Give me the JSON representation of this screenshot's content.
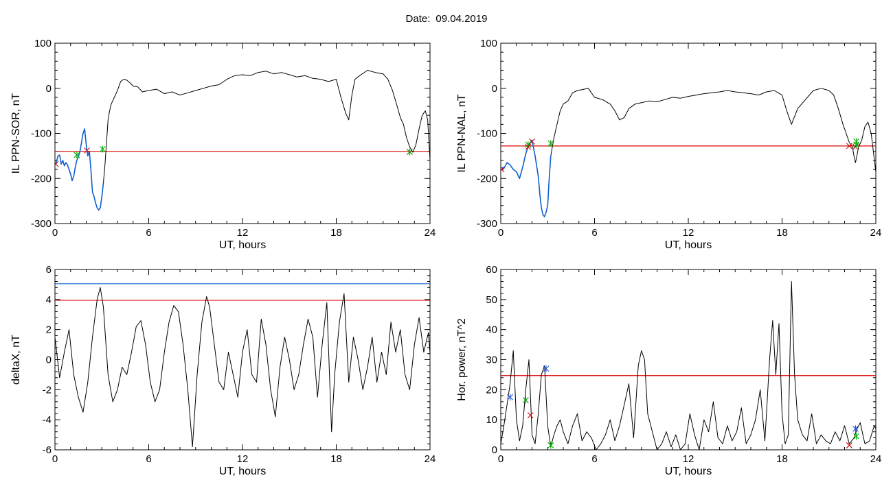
{
  "header": {
    "date_label": "Date:",
    "date_value": "09.04.2019"
  },
  "colors": {
    "trace": "#000000",
    "threshold_red": "#dd0000",
    "threshold_blue": "#1060d0",
    "segment_blue": "#1060d0",
    "marker_green": "#00aa00",
    "marker_red": "#cc0000",
    "marker_blue": "#2050e0"
  },
  "chart_data": [
    {
      "id": "sor",
      "type": "line",
      "xlabel": "UT, hours",
      "ylabel": "IL PPN-SOR, nT",
      "xlim": [
        0,
        24
      ],
      "ylim": [
        -300,
        100
      ],
      "xticks": [
        0,
        6,
        12,
        18,
        24
      ],
      "yticks": [
        -300,
        -200,
        -100,
        0,
        100
      ],
      "series": [
        {
          "color": "black",
          "x": [
            0,
            0.1,
            0.2,
            0.3,
            0.4,
            0.5,
            0.6,
            0.7,
            0.8,
            0.9,
            1.0,
            1.1,
            1.2,
            1.3,
            1.4,
            1.5,
            1.6,
            1.7,
            1.8,
            1.9,
            2.0,
            2.1,
            2.2,
            2.3,
            2.4,
            2.5,
            2.6,
            2.7,
            2.8,
            2.9,
            3.0,
            3.1,
            3.2,
            3.3,
            3.4,
            3.5,
            3.6,
            3.8,
            4.0,
            4.2,
            4.4,
            4.6,
            4.8,
            5.0,
            5.3,
            5.6,
            6.0,
            6.5,
            7.0,
            7.5,
            8.0,
            8.5,
            9.0,
            9.5,
            10.0,
            10.5,
            11.0,
            11.5,
            12.0,
            12.5,
            13.0,
            13.5,
            14.0,
            14.5,
            15.0,
            15.5,
            16.0,
            16.5,
            17.0,
            17.5,
            18.0,
            18.3,
            18.6,
            18.8,
            19.0,
            19.2,
            19.5,
            20.0,
            20.5,
            21.0,
            21.3,
            21.6,
            21.9,
            22.1,
            22.3,
            22.5,
            22.7,
            22.9,
            23.1,
            23.3,
            23.5,
            23.7,
            23.85,
            24.0
          ],
          "y": [
            -170,
            -162,
            -150,
            -148,
            -168,
            -160,
            -172,
            -165,
            -170,
            -180,
            -190,
            -205,
            -195,
            -175,
            -160,
            -152,
            -140,
            -120,
            -100,
            -90,
            -125,
            -150,
            -140,
            -180,
            -230,
            -240,
            -255,
            -265,
            -270,
            -265,
            -240,
            -210,
            -170,
            -120,
            -70,
            -50,
            -35,
            -20,
            -5,
            15,
            20,
            18,
            12,
            5,
            3,
            -8,
            -5,
            -2,
            -12,
            -8,
            -15,
            -10,
            -5,
            0,
            5,
            8,
            20,
            28,
            30,
            28,
            35,
            38,
            32,
            35,
            30,
            25,
            28,
            22,
            20,
            15,
            20,
            -20,
            -55,
            -70,
            -15,
            20,
            28,
            40,
            35,
            32,
            20,
            -5,
            -40,
            -65,
            -80,
            -110,
            -130,
            -142,
            -125,
            -90,
            -60,
            -50,
            -70,
            -160
          ]
        }
      ],
      "threshold_red": -140,
      "highlighted_segments": [
        [
          0,
          3.1
        ]
      ],
      "markers": [
        {
          "x": 1.4,
          "y": -148,
          "color": "green"
        },
        {
          "x": 2.05,
          "y": -138,
          "color": "red"
        },
        {
          "x": 3.05,
          "y": -135,
          "color": "green"
        },
        {
          "x": 22.7,
          "y": -141,
          "color": "red"
        },
        {
          "x": 22.7,
          "y": -141,
          "color": "green"
        },
        {
          "x": 0.05,
          "y": -168,
          "color": "red"
        }
      ]
    },
    {
      "id": "nal",
      "type": "line",
      "xlabel": "UT, hours",
      "ylabel": "IL PPN-NAL, nT",
      "xlim": [
        0,
        24
      ],
      "ylim": [
        -300,
        100
      ],
      "xticks": [
        0,
        6,
        12,
        18,
        24
      ],
      "yticks": [
        -300,
        -200,
        -100,
        0,
        100
      ],
      "series": [
        {
          "color": "black",
          "x": [
            0,
            0.2,
            0.4,
            0.6,
            0.8,
            1.0,
            1.2,
            1.4,
            1.6,
            1.8,
            2.0,
            2.2,
            2.4,
            2.5,
            2.6,
            2.7,
            2.8,
            2.9,
            3.0,
            3.1,
            3.2,
            3.4,
            3.6,
            3.8,
            4.0,
            4.3,
            4.6,
            4.9,
            5.2,
            5.6,
            6.0,
            6.5,
            7.0,
            7.3,
            7.6,
            7.9,
            8.2,
            8.6,
            9.0,
            9.5,
            10.0,
            10.5,
            11.0,
            11.5,
            12.0,
            12.5,
            13.0,
            13.5,
            14.0,
            14.5,
            15.0,
            15.5,
            16.0,
            16.5,
            17.0,
            17.5,
            18.0,
            18.3,
            18.6,
            19.0,
            19.5,
            20.0,
            20.5,
            21.0,
            21.3,
            21.6,
            21.9,
            22.1,
            22.3,
            22.5,
            22.6,
            22.7,
            22.9,
            23.1,
            23.3,
            23.5,
            23.7,
            24.0
          ],
          "y": [
            -175,
            -178,
            -165,
            -170,
            -180,
            -185,
            -200,
            -175,
            -145,
            -125,
            -115,
            -150,
            -195,
            -235,
            -265,
            -280,
            -285,
            -275,
            -260,
            -200,
            -150,
            -110,
            -80,
            -50,
            -35,
            -28,
            -10,
            -5,
            -3,
            0,
            -20,
            -25,
            -35,
            -50,
            -70,
            -65,
            -45,
            -35,
            -32,
            -28,
            -30,
            -25,
            -20,
            -22,
            -18,
            -15,
            -12,
            -10,
            -8,
            -5,
            -8,
            -10,
            -12,
            -15,
            -8,
            -5,
            -15,
            -50,
            -80,
            -45,
            -25,
            -5,
            0,
            -5,
            -15,
            -45,
            -80,
            -100,
            -120,
            -130,
            -150,
            -165,
            -130,
            -115,
            -85,
            -75,
            -100,
            -185
          ]
        }
      ],
      "threshold_red": -128,
      "highlighted_segments": [
        [
          0,
          3.2
        ]
      ],
      "markers": [
        {
          "x": 1.75,
          "y": -125,
          "color": "green"
        },
        {
          "x": 1.75,
          "y": -130,
          "color": "red"
        },
        {
          "x": 2.0,
          "y": -118,
          "color": "red"
        },
        {
          "x": 3.2,
          "y": -122,
          "color": "green"
        },
        {
          "x": 22.3,
          "y": -128,
          "color": "red"
        },
        {
          "x": 22.7,
          "y": -130,
          "color": "red"
        },
        {
          "x": 22.75,
          "y": -118,
          "color": "green"
        },
        {
          "x": 22.75,
          "y": -125,
          "color": "green"
        },
        {
          "x": 0.05,
          "y": -180,
          "color": "red"
        }
      ]
    },
    {
      "id": "deltax",
      "type": "line",
      "xlabel": "UT, hours",
      "ylabel": "deltaX, nT",
      "xlim": [
        0,
        24
      ],
      "ylim": [
        -6,
        6
      ],
      "xticks": [
        0,
        6,
        12,
        18,
        24
      ],
      "yticks": [
        -6,
        -4,
        -2,
        0,
        2,
        4,
        6
      ],
      "series": [
        {
          "color": "black",
          "x": [
            0,
            0.3,
            0.6,
            0.9,
            1.2,
            1.5,
            1.8,
            2.1,
            2.4,
            2.7,
            2.9,
            3.1,
            3.4,
            3.7,
            4.0,
            4.3,
            4.6,
            4.9,
            5.2,
            5.5,
            5.8,
            6.1,
            6.4,
            6.7,
            7.0,
            7.3,
            7.6,
            7.9,
            8.2,
            8.5,
            8.8,
            9.1,
            9.4,
            9.7,
            9.9,
            10.2,
            10.5,
            10.8,
            11.1,
            11.4,
            11.7,
            12.0,
            12.3,
            12.6,
            12.9,
            13.2,
            13.5,
            13.8,
            14.1,
            14.4,
            14.7,
            15.0,
            15.3,
            15.6,
            15.9,
            16.2,
            16.5,
            16.8,
            17.1,
            17.4,
            17.7,
            17.9,
            18.2,
            18.5,
            18.8,
            19.1,
            19.4,
            19.7,
            20.0,
            20.3,
            20.6,
            20.9,
            21.2,
            21.5,
            21.8,
            22.1,
            22.4,
            22.7,
            23.0,
            23.3,
            23.6,
            23.9,
            24.0
          ],
          "y": [
            1.5,
            -1.2,
            0.5,
            2.0,
            -1.0,
            -2.5,
            -3.5,
            -1.5,
            1.5,
            4.0,
            4.8,
            3.5,
            -1.0,
            -2.8,
            -2.0,
            -0.5,
            -1.0,
            0.5,
            2.2,
            2.6,
            1.0,
            -1.5,
            -2.8,
            -2.0,
            0.5,
            2.5,
            3.6,
            3.2,
            1.0,
            -2.0,
            -5.8,
            -1.0,
            2.5,
            4.2,
            3.5,
            1.0,
            -1.5,
            -2.0,
            0.5,
            -1.0,
            -2.5,
            0.5,
            2.0,
            -1.0,
            -1.5,
            2.7,
            1.0,
            -2.0,
            -3.8,
            -0.5,
            1.5,
            0.0,
            -2.0,
            -1.0,
            1.0,
            2.7,
            1.5,
            -2.5,
            1.0,
            3.8,
            -4.8,
            -1.0,
            2.5,
            4.4,
            -1.5,
            1.5,
            0.0,
            -2.0,
            -0.5,
            1.5,
            -1.5,
            0.5,
            -1.0,
            2.5,
            0.5,
            2.0,
            -1.0,
            -2.0,
            1.0,
            2.8,
            0.5,
            1.8,
            0.4
          ]
        }
      ],
      "threshold_red": 3.95,
      "threshold_blue": 5.05
    },
    {
      "id": "power",
      "type": "line",
      "xlabel": "UT, hours",
      "ylabel": "Hor. power, nT^2",
      "xlim": [
        0,
        24
      ],
      "ylim": [
        0,
        60
      ],
      "xticks": [
        0,
        6,
        12,
        18,
        24
      ],
      "yticks": [
        0,
        10,
        20,
        30,
        40,
        50,
        60
      ],
      "series": [
        {
          "color": "black",
          "x": [
            0,
            0.2,
            0.4,
            0.6,
            0.8,
            1.0,
            1.2,
            1.4,
            1.6,
            1.8,
            1.9,
            2.0,
            2.2,
            2.4,
            2.6,
            2.8,
            3.0,
            3.2,
            3.4,
            3.6,
            3.8,
            4.0,
            4.3,
            4.6,
            4.9,
            5.2,
            5.5,
            5.8,
            6.1,
            6.4,
            6.7,
            7.0,
            7.3,
            7.6,
            7.9,
            8.2,
            8.5,
            8.8,
            9.0,
            9.2,
            9.4,
            9.7,
            10.0,
            10.3,
            10.6,
            10.9,
            11.2,
            11.5,
            11.8,
            12.1,
            12.4,
            12.7,
            13.0,
            13.3,
            13.6,
            13.9,
            14.2,
            14.5,
            14.8,
            15.1,
            15.4,
            15.7,
            16.0,
            16.3,
            16.6,
            16.9,
            17.2,
            17.4,
            17.6,
            17.8,
            18.0,
            18.2,
            18.4,
            18.6,
            18.8,
            19.0,
            19.3,
            19.6,
            19.9,
            20.2,
            20.5,
            20.8,
            21.1,
            21.4,
            21.7,
            22.0,
            22.3,
            22.6,
            22.8,
            23.0,
            23.3,
            23.6,
            23.9,
            24.0
          ],
          "y": [
            2,
            8,
            15,
            22,
            33,
            10,
            3,
            8,
            20,
            30,
            18,
            5,
            2,
            12,
            25,
            28,
            8,
            1,
            5,
            8,
            10,
            6,
            2,
            8,
            12,
            3,
            6,
            4,
            0,
            2,
            5,
            10,
            3,
            8,
            15,
            22,
            4,
            28,
            33,
            30,
            12,
            6,
            0,
            2,
            6,
            1,
            5,
            0,
            2,
            12,
            5,
            0,
            10,
            6,
            16,
            4,
            2,
            8,
            3,
            6,
            14,
            2,
            5,
            10,
            20,
            3,
            30,
            43,
            25,
            42,
            12,
            2,
            5,
            56,
            25,
            10,
            5,
            3,
            12,
            2,
            5,
            3,
            2,
            6,
            3,
            8,
            2,
            4,
            7,
            9,
            2,
            3,
            8,
            7
          ]
        }
      ],
      "threshold_red": 24.7,
      "markers": [
        {
          "x": 0.6,
          "y": 17.5,
          "color": "blue"
        },
        {
          "x": 1.6,
          "y": 16.5,
          "color": "green"
        },
        {
          "x": 1.9,
          "y": 11.5,
          "color": "red"
        },
        {
          "x": 2.9,
          "y": 27.0,
          "color": "blue"
        },
        {
          "x": 3.2,
          "y": 1.5,
          "color": "green"
        },
        {
          "x": 22.3,
          "y": 1.5,
          "color": "red"
        },
        {
          "x": 22.7,
          "y": 7.0,
          "color": "blue"
        },
        {
          "x": 22.75,
          "y": 4.5,
          "color": "green"
        }
      ]
    }
  ]
}
